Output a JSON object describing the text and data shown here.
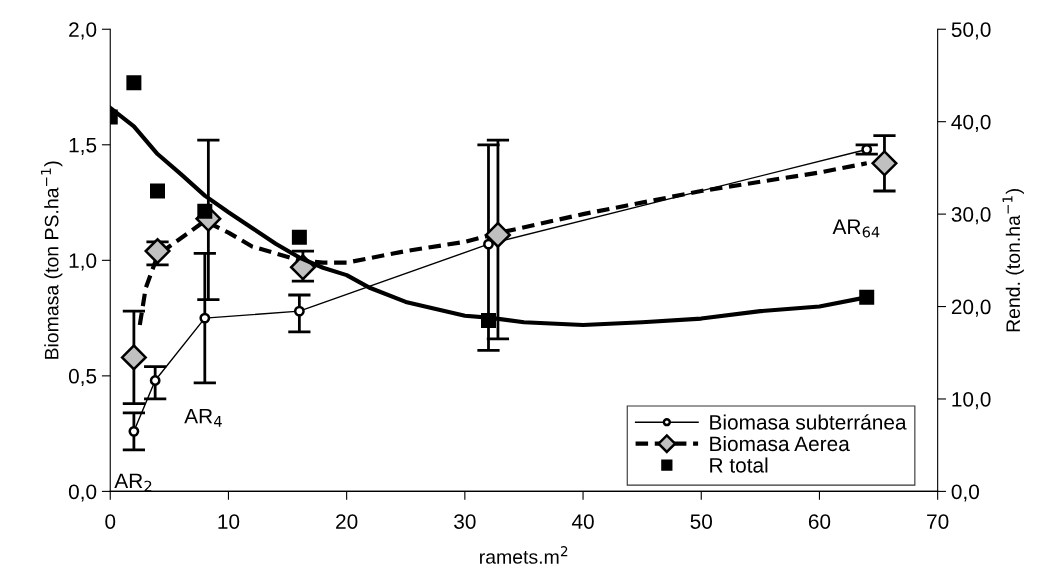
{
  "chart_data": {
    "type": "line",
    "xlabel": "ramets.m$^{2}$",
    "ylabel": "Biomasa (ton PS.ha$^{−1}$)",
    "y2label": "Rend. (ton.ha$^{−1}$)",
    "xlim": [
      0,
      70
    ],
    "xticks": [
      0,
      10,
      20,
      30,
      40,
      50,
      60,
      70
    ],
    "ylim": [
      0,
      2
    ],
    "yticks": [
      {
        "value": 0,
        "label": "0,0"
      },
      {
        "value": 0.5,
        "label": "0,5"
      },
      {
        "value": 1,
        "label": "1,0"
      },
      {
        "value": 1.5,
        "label": "1,5"
      },
      {
        "value": 2,
        "label": "2,0"
      }
    ],
    "y2lim": [
      0,
      50
    ],
    "y2ticks": [
      {
        "value": 0,
        "label": "0,0"
      },
      {
        "value": 10,
        "label": "10,0"
      },
      {
        "value": 20,
        "label": "20,0"
      },
      {
        "value": 30,
        "label": "30,0"
      },
      {
        "value": 40,
        "label": "40,0"
      },
      {
        "value": 50,
        "label": "50,0"
      }
    ],
    "grid": false,
    "legend": "bottom right",
    "series": [
      {
        "color": "#000000",
        "line_style": "solid",
        "axis": "y2",
        "x": [
          0,
          2,
          4,
          6,
          8,
          10,
          12,
          14,
          16,
          18,
          20,
          22,
          25,
          28,
          30,
          32,
          35,
          40,
          45,
          50,
          55,
          60,
          64
        ],
        "values": [
          41.5,
          39.5,
          36.5,
          34.3,
          32.0,
          30.2,
          28.5,
          26.8,
          25.3,
          24.2,
          23.4,
          22.0,
          20.5,
          19.6,
          19.0,
          18.8,
          18.3,
          18.0,
          18.3,
          18.7,
          19.5,
          20.0,
          21.0
        ]
      },
      {
        "color": "#000000",
        "line_style": "dashed",
        "x": [
          2.5,
          3,
          4,
          5,
          8,
          10,
          12,
          16,
          18,
          20,
          25,
          30,
          33,
          40,
          50,
          60,
          64
        ],
        "values": [
          0.72,
          0.88,
          1.02,
          1.06,
          1.17,
          1.12,
          1.06,
          1.0,
          0.99,
          0.99,
          1.04,
          1.08,
          1.12,
          1.2,
          1.3,
          1.38,
          1.42
        ]
      },
      {
        "type": "line",
        "name": "Biomasa subterránea",
        "color": "#000000",
        "marker": "circle",
        "line_style": "solid",
        "x": [
          2,
          3.8,
          8,
          16,
          32,
          64
        ],
        "values": [
          0.26,
          0.48,
          0.75,
          0.78,
          1.07,
          1.48
        ],
        "errors": [
          [
            0.18,
            0.34
          ],
          [
            0.4,
            0.54
          ],
          [
            0.47,
            1.03
          ],
          [
            0.69,
            0.85
          ],
          [
            0.61,
            1.5
          ],
          [
            1.46,
            1.5
          ]
        ]
      },
      {
        "type": "scatter",
        "name": "Biomasa Aerea",
        "color": "#c0c0c0",
        "marker": "diamond",
        "line_style": "dashed",
        "x": [
          2,
          4,
          8.3,
          16.3,
          32.8,
          65.5
        ],
        "values": [
          0.58,
          1.04,
          1.18,
          0.97,
          1.11,
          1.42
        ],
        "errors": [
          [
            0.38,
            0.78
          ],
          [
            0.98,
            1.08
          ],
          [
            0.83,
            1.52
          ],
          [
            0.91,
            1.04
          ],
          [
            0.66,
            1.52
          ],
          [
            1.3,
            1.54
          ]
        ]
      },
      {
        "type": "scatter",
        "name": "R total",
        "color": "#000000",
        "marker": "square",
        "axis": "y2",
        "x": [
          0,
          2,
          4,
          8,
          16,
          32,
          64
        ],
        "values": [
          40.5,
          44.2,
          32.5,
          30.3,
          27.5,
          18.5,
          21.0
        ]
      }
    ],
    "annotations": [
      {
        "text": "AR$_{2}$",
        "x": 2,
        "y": 0.26
      },
      {
        "text": "AR$_{4}$",
        "x": 3.8,
        "y": 0.48
      },
      {
        "text": "AR$_{64}$",
        "x": 65.5,
        "y": 1.42
      }
    ]
  }
}
